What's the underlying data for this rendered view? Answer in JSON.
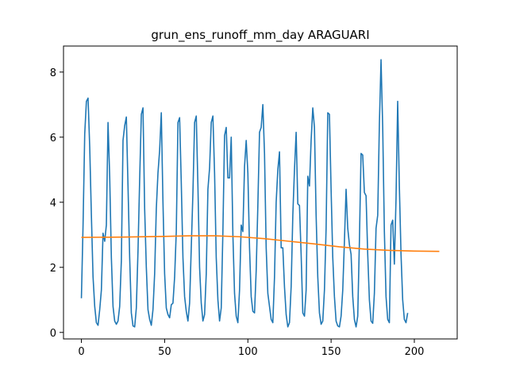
{
  "chart_data": {
    "type": "line",
    "title": "grun_ens_runoff_mm_day ARAGUARI",
    "xlabel": "",
    "ylabel": "",
    "xlim": [
      -10.75,
      225.75
    ],
    "ylim": [
      -0.2,
      8.8
    ],
    "x_ticks": [
      0,
      50,
      100,
      150,
      200
    ],
    "y_ticks": [
      0,
      2,
      4,
      6,
      8
    ],
    "grid": false,
    "legend": "none",
    "series": [
      {
        "color": "#1f77b4",
        "points": [
          [
            0,
            1.05
          ],
          [
            1,
            3.3
          ],
          [
            2,
            6.1
          ],
          [
            3,
            7.1
          ],
          [
            4,
            7.2
          ],
          [
            5,
            5.7
          ],
          [
            6,
            3.6
          ],
          [
            7,
            1.7
          ],
          [
            8,
            0.8
          ],
          [
            9,
            0.3
          ],
          [
            10,
            0.22
          ],
          [
            11,
            0.7
          ],
          [
            12,
            1.3
          ],
          [
            13,
            3.05
          ],
          [
            14,
            2.8
          ],
          [
            15,
            3.3
          ],
          [
            16,
            6.45
          ],
          [
            17,
            4.8
          ],
          [
            18,
            2.3
          ],
          [
            19,
            0.8
          ],
          [
            20,
            0.35
          ],
          [
            21,
            0.25
          ],
          [
            22,
            0.35
          ],
          [
            23,
            0.8
          ],
          [
            24,
            2.2
          ],
          [
            25,
            5.9
          ],
          [
            26,
            6.35
          ],
          [
            27,
            6.62
          ],
          [
            28,
            4.5
          ],
          [
            29,
            2.3
          ],
          [
            30,
            0.6
          ],
          [
            31,
            0.2
          ],
          [
            32,
            0.17
          ],
          [
            33,
            0.75
          ],
          [
            34,
            2.5
          ],
          [
            35,
            4.7
          ],
          [
            36,
            6.7
          ],
          [
            37,
            6.9
          ],
          [
            38,
            3.8
          ],
          [
            39,
            2.0
          ],
          [
            40,
            0.7
          ],
          [
            41,
            0.4
          ],
          [
            42,
            0.22
          ],
          [
            43,
            0.7
          ],
          [
            44,
            1.8
          ],
          [
            45,
            3.8
          ],
          [
            46,
            4.9
          ],
          [
            47,
            5.6
          ],
          [
            48,
            6.75
          ],
          [
            49,
            4.0
          ],
          [
            50,
            1.8
          ],
          [
            51,
            0.75
          ],
          [
            52,
            0.55
          ],
          [
            53,
            0.45
          ],
          [
            54,
            0.85
          ],
          [
            55,
            0.9
          ],
          [
            56,
            1.7
          ],
          [
            57,
            3.1
          ],
          [
            58,
            6.45
          ],
          [
            59,
            6.6
          ],
          [
            60,
            4.6
          ],
          [
            61,
            2.3
          ],
          [
            62,
            1.1
          ],
          [
            63,
            0.65
          ],
          [
            64,
            0.35
          ],
          [
            65,
            0.9
          ],
          [
            66,
            2.6
          ],
          [
            67,
            4.3
          ],
          [
            68,
            6.45
          ],
          [
            69,
            6.65
          ],
          [
            70,
            4.5
          ],
          [
            71,
            2.0
          ],
          [
            72,
            0.9
          ],
          [
            73,
            0.35
          ],
          [
            74,
            0.55
          ],
          [
            75,
            1.8
          ],
          [
            76,
            4.4
          ],
          [
            77,
            5.05
          ],
          [
            78,
            6.45
          ],
          [
            79,
            6.65
          ],
          [
            80,
            4.9
          ],
          [
            81,
            2.3
          ],
          [
            82,
            1.0
          ],
          [
            83,
            0.35
          ],
          [
            84,
            0.75
          ],
          [
            85,
            3.1
          ],
          [
            86,
            6.05
          ],
          [
            87,
            6.3
          ],
          [
            88,
            4.75
          ],
          [
            89,
            4.75
          ],
          [
            90,
            6.0
          ],
          [
            91,
            3.0
          ],
          [
            92,
            1.2
          ],
          [
            93,
            0.5
          ],
          [
            94,
            0.3
          ],
          [
            95,
            1.3
          ],
          [
            96,
            3.3
          ],
          [
            97,
            3.1
          ],
          [
            98,
            5.1
          ],
          [
            99,
            5.9
          ],
          [
            100,
            4.9
          ],
          [
            101,
            2.6
          ],
          [
            102,
            1.1
          ],
          [
            103,
            0.65
          ],
          [
            104,
            0.6
          ],
          [
            105,
            1.9
          ],
          [
            106,
            3.9
          ],
          [
            107,
            6.15
          ],
          [
            108,
            6.3
          ],
          [
            109,
            7.0
          ],
          [
            110,
            5.5
          ],
          [
            111,
            2.6
          ],
          [
            112,
            1.2
          ],
          [
            113,
            0.8
          ],
          [
            114,
            0.4
          ],
          [
            115,
            0.3
          ],
          [
            116,
            1.7
          ],
          [
            117,
            4.0
          ],
          [
            118,
            5.0
          ],
          [
            119,
            5.55
          ],
          [
            120,
            2.6
          ],
          [
            121,
            2.6
          ],
          [
            122,
            1.4
          ],
          [
            123,
            0.55
          ],
          [
            124,
            0.17
          ],
          [
            125,
            0.3
          ],
          [
            126,
            1.4
          ],
          [
            127,
            3.6
          ],
          [
            128,
            5.0
          ],
          [
            129,
            6.15
          ],
          [
            130,
            3.95
          ],
          [
            131,
            3.9
          ],
          [
            132,
            2.4
          ],
          [
            133,
            0.6
          ],
          [
            134,
            0.5
          ],
          [
            135,
            1.3
          ],
          [
            136,
            4.8
          ],
          [
            137,
            4.5
          ],
          [
            138,
            5.9
          ],
          [
            139,
            6.9
          ],
          [
            140,
            6.3
          ],
          [
            141,
            3.6
          ],
          [
            142,
            1.7
          ],
          [
            143,
            0.6
          ],
          [
            144,
            0.25
          ],
          [
            145,
            0.35
          ],
          [
            146,
            1.3
          ],
          [
            147,
            3.2
          ],
          [
            148,
            6.75
          ],
          [
            149,
            6.7
          ],
          [
            150,
            4.4
          ],
          [
            151,
            2.3
          ],
          [
            152,
            1.1
          ],
          [
            153,
            0.35
          ],
          [
            154,
            0.2
          ],
          [
            155,
            0.17
          ],
          [
            156,
            0.5
          ],
          [
            157,
            1.3
          ],
          [
            158,
            2.8
          ],
          [
            159,
            4.4
          ],
          [
            160,
            3.2
          ],
          [
            161,
            2.7
          ],
          [
            162,
            2.4
          ],
          [
            163,
            1.1
          ],
          [
            164,
            0.4
          ],
          [
            165,
            0.17
          ],
          [
            166,
            0.5
          ],
          [
            167,
            2.8
          ],
          [
            168,
            5.5
          ],
          [
            169,
            5.45
          ],
          [
            170,
            4.3
          ],
          [
            171,
            4.2
          ],
          [
            172,
            2.4
          ],
          [
            173,
            1.0
          ],
          [
            174,
            0.35
          ],
          [
            175,
            0.28
          ],
          [
            176,
            1.2
          ],
          [
            177,
            3.2
          ],
          [
            178,
            3.6
          ],
          [
            179,
            6.4
          ],
          [
            180,
            8.38
          ],
          [
            181,
            6.3
          ],
          [
            182,
            3.1
          ],
          [
            183,
            1.1
          ],
          [
            184,
            0.4
          ],
          [
            185,
            0.3
          ],
          [
            186,
            3.3
          ],
          [
            187,
            3.45
          ],
          [
            188,
            2.1
          ],
          [
            189,
            4.1
          ],
          [
            190,
            7.1
          ],
          [
            191,
            4.5
          ],
          [
            192,
            2.4
          ],
          [
            193,
            1.0
          ],
          [
            194,
            0.4
          ],
          [
            195,
            0.3
          ],
          [
            196,
            0.6
          ]
        ]
      },
      {
        "color": "#ff7f0e",
        "points": [
          [
            0,
            2.92
          ],
          [
            25,
            2.93
          ],
          [
            50,
            2.95
          ],
          [
            65,
            2.97
          ],
          [
            80,
            2.97
          ],
          [
            95,
            2.94
          ],
          [
            110,
            2.88
          ],
          [
            125,
            2.8
          ],
          [
            140,
            2.72
          ],
          [
            155,
            2.63
          ],
          [
            170,
            2.56
          ],
          [
            185,
            2.52
          ],
          [
            200,
            2.5
          ],
          [
            215,
            2.49
          ]
        ]
      }
    ]
  }
}
